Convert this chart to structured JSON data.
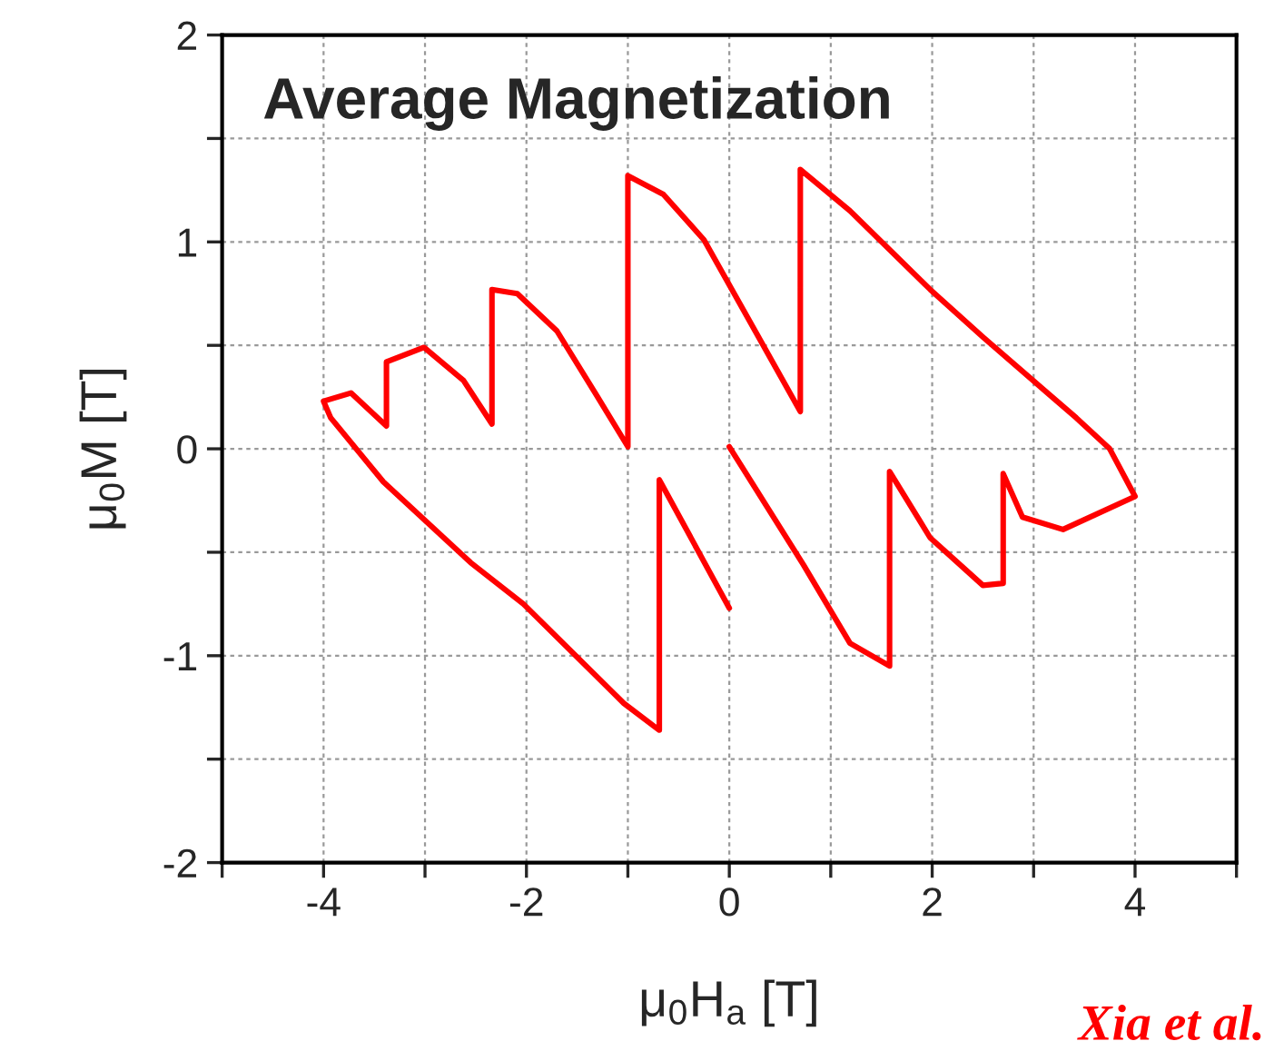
{
  "chart_data": {
    "type": "line",
    "title": "Average Magnetization",
    "xlabel": "μ$_{0}$H$_{a}$ [T]",
    "ylabel": "μ$_{0}$M [T]",
    "x": [
      0,
      -0.69,
      -0.69,
      -1.04,
      -2.03,
      -2.55,
      -3.41,
      -3.93,
      -4.0,
      -3.73,
      -3.38,
      -3.38,
      -3.01,
      -2.62,
      -2.34,
      -2.34,
      -2.09,
      -1.7,
      -1.31,
      -1.0,
      -1.0,
      -0.65,
      -0.25,
      0.14,
      0.7,
      0.7,
      1.19,
      1.98,
      2.5,
      3.16,
      3.42,
      3.75,
      4.0,
      3.29,
      2.89,
      2.7,
      2.7,
      2.5,
      1.98,
      1.58,
      1.58,
      1.19,
      0.73,
      0
    ],
    "series": [
      {
        "color": "#ff0000",
        "values": [
          -0.77,
          -0.15,
          -1.36,
          -1.23,
          -0.75,
          -0.55,
          -0.16,
          0.15,
          0.23,
          0.27,
          0.11,
          0.42,
          0.49,
          0.33,
          0.12,
          0.77,
          0.75,
          0.57,
          0.26,
          0.01,
          1.32,
          1.23,
          1.01,
          0.67,
          0.18,
          1.35,
          1.15,
          0.77,
          0.54,
          0.26,
          0.15,
          0.0,
          -0.23,
          -0.39,
          -0.33,
          -0.12,
          -0.65,
          -0.66,
          -0.43,
          -0.11,
          -1.05,
          -0.94,
          -0.56,
          0.01
        ]
      }
    ],
    "xlim": [
      -5,
      5
    ],
    "ylim": [
      -2,
      2
    ],
    "xticks": [
      {
        "value": -5,
        "label": null
      },
      -4,
      {
        "value": -3,
        "label": null
      },
      -2,
      {
        "value": -1,
        "label": null
      },
      0,
      {
        "value": 1,
        "label": null
      },
      2,
      {
        "value": 3,
        "label": null
      },
      4,
      {
        "value": 5,
        "label": null
      }
    ],
    "yticks": [
      -2,
      {
        "value": -1.5,
        "label": null
      },
      -1,
      {
        "value": -0.5,
        "label": null
      },
      0,
      {
        "value": 0.5,
        "label": null
      },
      1,
      {
        "value": 1.5,
        "label": null
      },
      2
    ],
    "grid": true,
    "marker": "none",
    "line_style": "solid",
    "legend": false,
    "annotations": [
      "Xia et al."
    ]
  }
}
